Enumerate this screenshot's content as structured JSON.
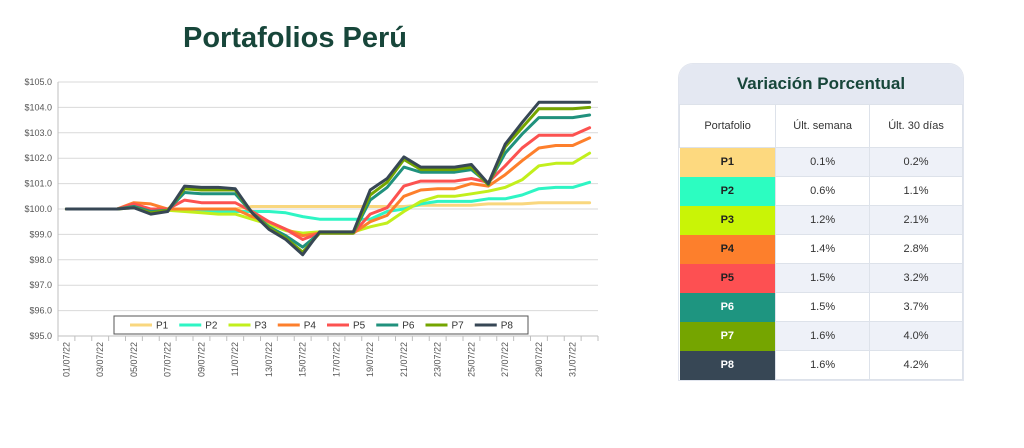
{
  "chart_data": {
    "type": "line",
    "title": "Portafolios Perú",
    "xlabel": "",
    "ylabel": "",
    "ylim": [
      95,
      105
    ],
    "yticks": [
      95,
      96,
      97,
      98,
      99,
      100,
      101,
      102,
      103,
      104,
      105
    ],
    "y_tick_labels": [
      "$95.0",
      "$96.0",
      "$97.0",
      "$98.0",
      "$99.0",
      "$100.0",
      "$101.0",
      "$102.0",
      "$103.0",
      "$104.0",
      "$105.0"
    ],
    "x": [
      "01/07/22",
      "02/07/22",
      "03/07/22",
      "04/07/22",
      "05/07/22",
      "06/07/22",
      "07/07/22",
      "08/07/22",
      "09/07/22",
      "10/07/22",
      "11/07/22",
      "12/07/22",
      "13/07/22",
      "14/07/22",
      "15/07/22",
      "16/07/22",
      "17/07/22",
      "18/07/22",
      "19/07/22",
      "20/07/22",
      "21/07/22",
      "22/07/22",
      "23/07/22",
      "24/07/22",
      "25/07/22",
      "26/07/22",
      "27/07/22",
      "28/07/22",
      "29/07/22",
      "30/07/22",
      "31/07/22",
      "01/08/22"
    ],
    "x_tick_labels": [
      "01/07/22",
      "03/07/22",
      "05/07/22",
      "07/07/22",
      "09/07/22",
      "11/07/22",
      "13/07/22",
      "15/07/22",
      "17/07/22",
      "19/07/22",
      "21/07/22",
      "23/07/22",
      "25/07/22",
      "27/07/22",
      "29/07/22",
      "31/07/22"
    ],
    "series": [
      {
        "name": "P1",
        "color": "#f9d77e",
        "values": [
          100.0,
          100.0,
          100.0,
          100.0,
          100.1,
          100.0,
          100.0,
          100.0,
          100.0,
          100.0,
          100.0,
          100.1,
          100.1,
          100.1,
          100.1,
          100.1,
          100.1,
          100.1,
          100.1,
          100.1,
          100.1,
          100.15,
          100.15,
          100.15,
          100.15,
          100.2,
          100.2,
          100.2,
          100.25,
          100.25,
          100.25,
          100.25
        ]
      },
      {
        "name": "P2",
        "color": "#2ef5c4",
        "values": [
          100.0,
          100.0,
          100.0,
          100.0,
          100.1,
          99.95,
          99.95,
          99.95,
          99.9,
          99.9,
          99.9,
          99.9,
          99.9,
          99.85,
          99.7,
          99.6,
          99.6,
          99.6,
          99.6,
          99.9,
          100.0,
          100.2,
          100.3,
          100.3,
          100.3,
          100.4,
          100.4,
          100.55,
          100.8,
          100.85,
          100.85,
          101.05
        ]
      },
      {
        "name": "P3",
        "color": "#c2ef1c",
        "values": [
          100.0,
          100.0,
          100.0,
          100.0,
          100.1,
          99.95,
          99.95,
          99.9,
          99.85,
          99.8,
          99.8,
          99.6,
          99.4,
          99.15,
          99.05,
          99.1,
          99.1,
          99.1,
          99.3,
          99.45,
          99.9,
          100.3,
          100.5,
          100.5,
          100.6,
          100.7,
          100.85,
          101.15,
          101.7,
          101.8,
          101.8,
          102.2
        ]
      },
      {
        "name": "P4",
        "color": "#fd7f2c",
        "values": [
          100.0,
          100.0,
          100.0,
          100.0,
          100.25,
          100.2,
          100.0,
          100.0,
          100.0,
          100.0,
          100.0,
          99.7,
          99.5,
          99.2,
          98.95,
          99.05,
          99.05,
          99.05,
          99.5,
          99.75,
          100.5,
          100.75,
          100.8,
          100.8,
          101.0,
          100.9,
          101.35,
          101.9,
          102.4,
          102.5,
          102.5,
          102.8
        ]
      },
      {
        "name": "P5",
        "color": "#fc5250",
        "values": [
          100.0,
          100.0,
          100.0,
          100.0,
          100.2,
          100.0,
          100.0,
          100.35,
          100.25,
          100.25,
          100.25,
          99.9,
          99.5,
          99.2,
          98.8,
          99.05,
          99.05,
          99.05,
          99.8,
          100.05,
          100.9,
          101.1,
          101.1,
          101.1,
          101.2,
          101.05,
          101.7,
          102.4,
          102.9,
          102.9,
          102.9,
          103.2
        ]
      },
      {
        "name": "P6",
        "color": "#20917d",
        "values": [
          100.0,
          100.0,
          100.0,
          100.0,
          100.1,
          99.9,
          99.95,
          100.65,
          100.6,
          100.6,
          100.6,
          99.85,
          99.3,
          98.95,
          98.5,
          99.05,
          99.05,
          99.05,
          100.35,
          100.85,
          101.65,
          101.45,
          101.45,
          101.45,
          101.55,
          101.0,
          102.2,
          102.95,
          103.6,
          103.6,
          103.6,
          103.7
        ]
      },
      {
        "name": "P7",
        "color": "#74a500",
        "values": [
          100.0,
          100.0,
          100.0,
          100.0,
          100.05,
          99.85,
          99.95,
          100.8,
          100.75,
          100.75,
          100.75,
          99.85,
          99.25,
          98.85,
          98.3,
          99.05,
          99.05,
          99.05,
          100.55,
          101.05,
          101.95,
          101.55,
          101.55,
          101.55,
          101.65,
          100.95,
          102.45,
          103.2,
          103.95,
          103.95,
          103.95,
          104.0
        ]
      },
      {
        "name": "P8",
        "color": "#374755",
        "values": [
          100.0,
          100.0,
          100.0,
          100.0,
          100.05,
          99.8,
          99.9,
          100.9,
          100.85,
          100.85,
          100.8,
          99.85,
          99.2,
          98.8,
          98.2,
          99.1,
          99.1,
          99.1,
          100.75,
          101.2,
          102.05,
          101.65,
          101.65,
          101.65,
          101.75,
          101.0,
          102.55,
          103.4,
          104.2,
          104.2,
          104.2,
          104.2
        ]
      }
    ],
    "legend_position": "bottom",
    "grid": "horizontal"
  },
  "panel": {
    "title": "Variación Porcentual",
    "headers": [
      "Portafolio",
      "Últ. semana",
      "Últ. 30 días"
    ],
    "rows": [
      {
        "name": "P1",
        "color": "#fdd97f",
        "week": "0.1%",
        "month": "0.2%"
      },
      {
        "name": "P2",
        "color": "#2cfdc1",
        "week": "0.6%",
        "month": "1.1%"
      },
      {
        "name": "P3",
        "color": "#c9f406",
        "week": "1.2%",
        "month": "2.1%"
      },
      {
        "name": "P4",
        "color": "#fd7f2c",
        "week": "1.4%",
        "month": "2.8%"
      },
      {
        "name": "P5",
        "color": "#fd5052",
        "week": "1.5%",
        "month": "3.2%"
      },
      {
        "name": "P6",
        "color": "#1e9580",
        "week": "1.5%",
        "month": "3.7%"
      },
      {
        "name": "P7",
        "color": "#75a500",
        "week": "1.6%",
        "month": "4.0%"
      },
      {
        "name": "P8",
        "color": "#374755",
        "week": "1.6%",
        "month": "4.2%"
      }
    ]
  }
}
